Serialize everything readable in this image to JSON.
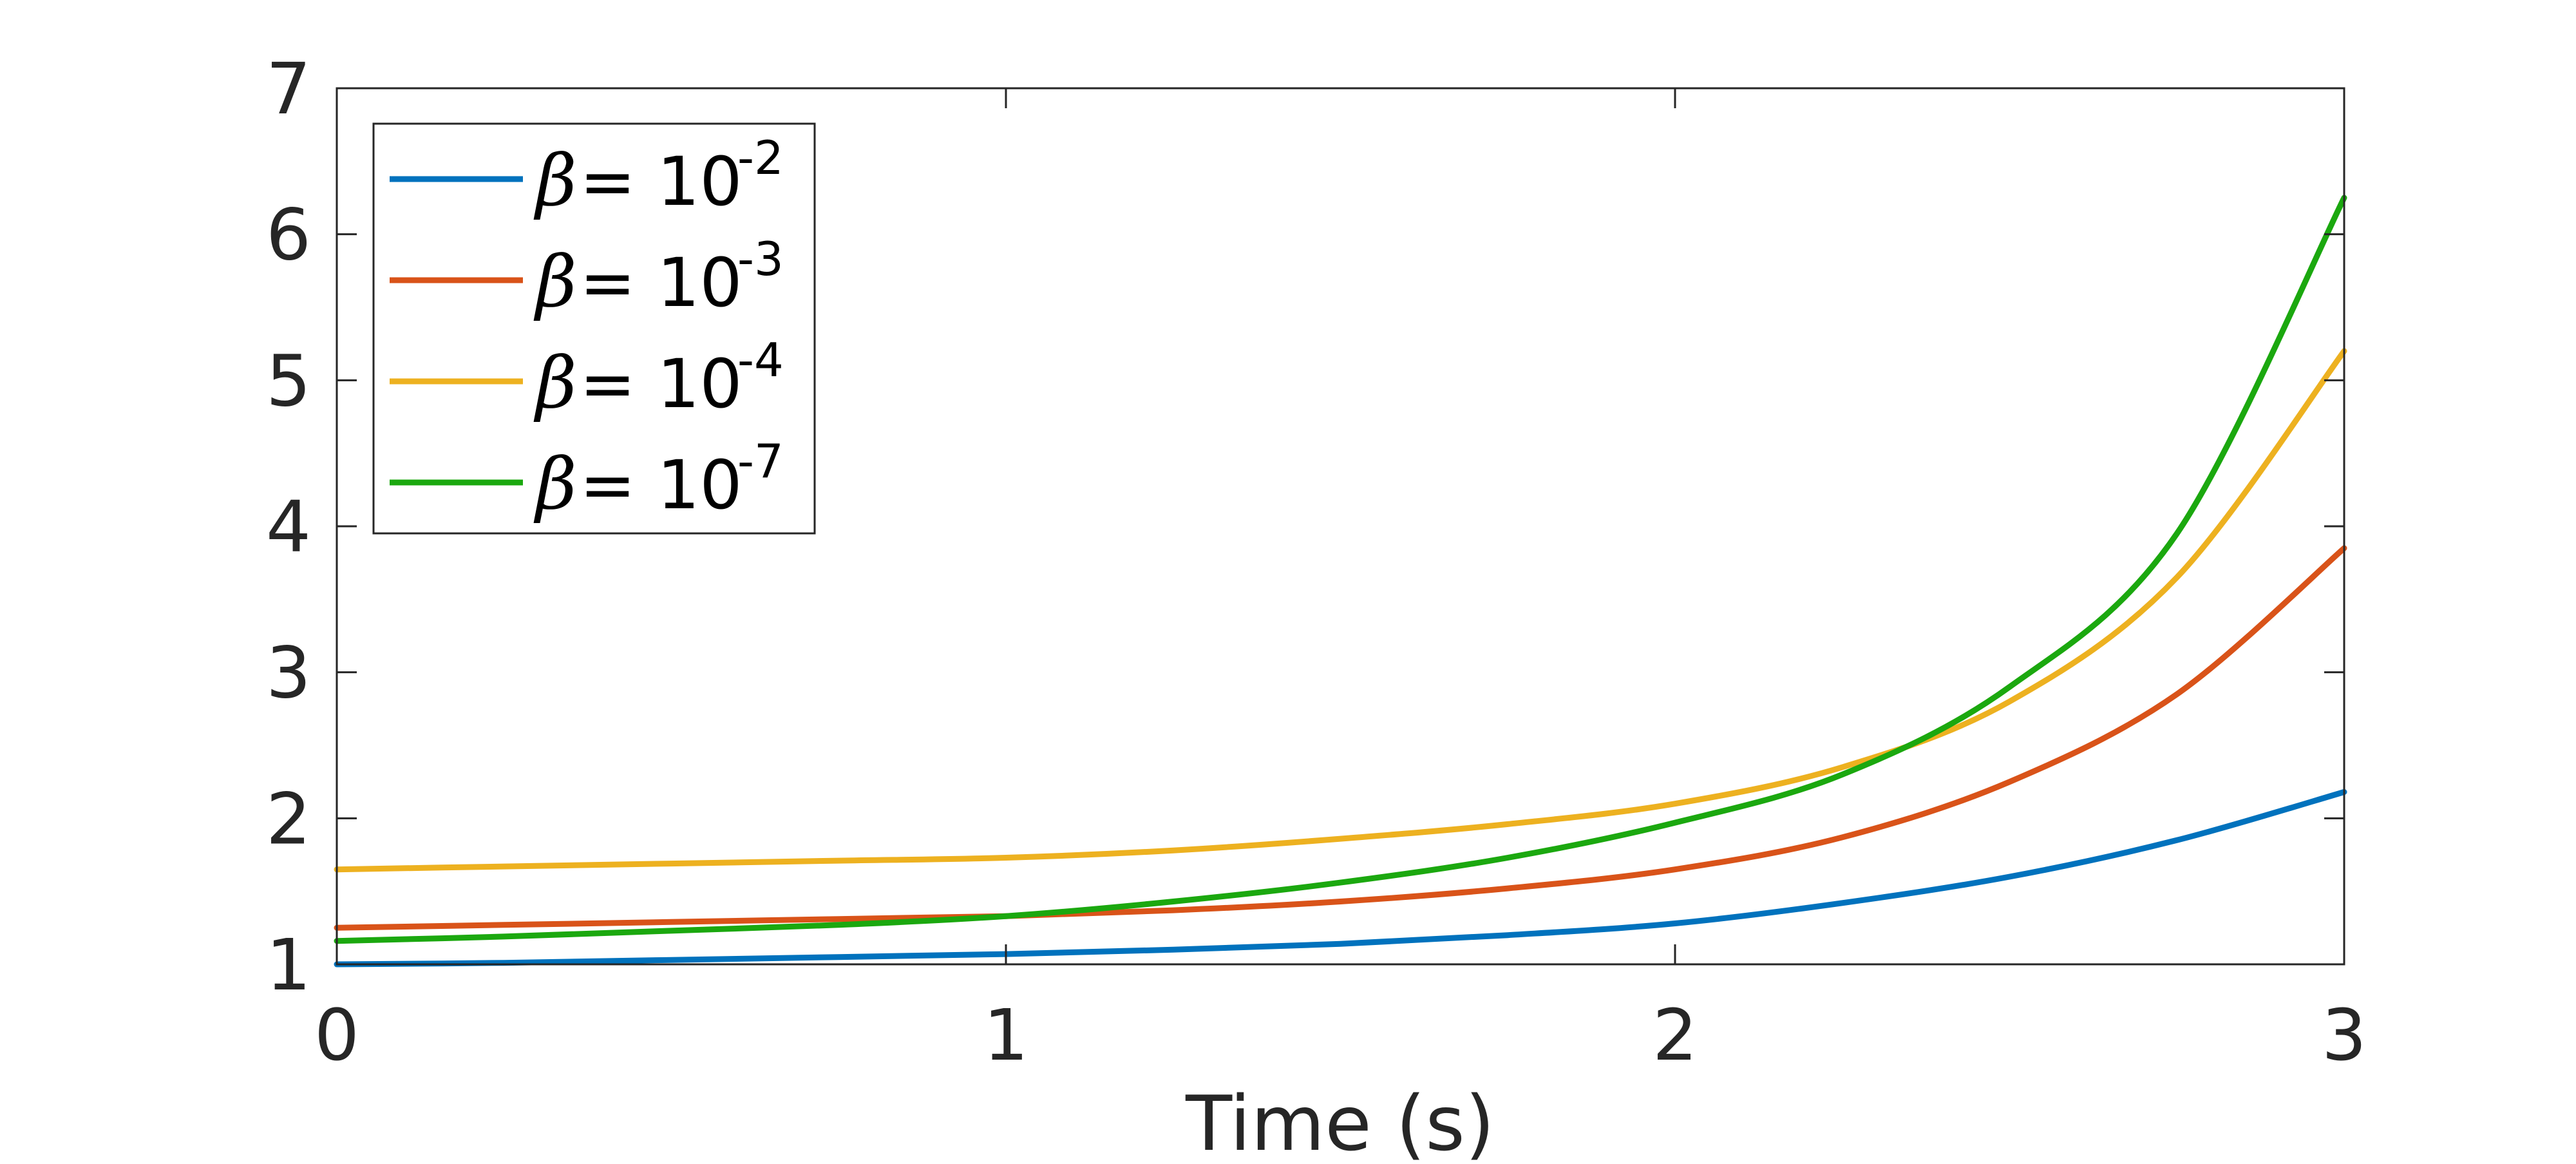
{
  "chart_data": {
    "type": "line",
    "xlabel": "Time (s)",
    "ylabel": "",
    "xlim": [
      0,
      3
    ],
    "ylim": [
      1,
      7
    ],
    "xticks": [
      0,
      1,
      2,
      3
    ],
    "yticks": [
      1,
      2,
      3,
      4,
      5,
      6,
      7
    ],
    "grid": false,
    "legend_position": "top-left",
    "x": [
      0,
      0.25,
      0.5,
      0.75,
      1.0,
      1.25,
      1.5,
      1.75,
      2.0,
      2.25,
      2.5,
      2.75,
      3.0
    ],
    "series": [
      {
        "name": "β = 10-2",
        "legend": {
          "symbol": "β",
          "text": " = 10",
          "exponent": "-2"
        },
        "color": "#0072BD",
        "values": [
          1.0,
          1.01,
          1.03,
          1.05,
          1.07,
          1.1,
          1.14,
          1.2,
          1.28,
          1.42,
          1.6,
          1.85,
          2.18
        ]
      },
      {
        "name": "β = 10-3",
        "legend": {
          "symbol": "β",
          "text": " = 10",
          "exponent": "-3"
        },
        "color": "#D95319",
        "values": [
          1.25,
          1.27,
          1.29,
          1.31,
          1.33,
          1.37,
          1.43,
          1.52,
          1.65,
          1.87,
          2.25,
          2.85,
          3.85
        ]
      },
      {
        "name": "β = 10-4",
        "legend": {
          "symbol": "β",
          "text": " = 10",
          "exponent": "-4"
        },
        "color": "#EDB120",
        "values": [
          1.65,
          1.67,
          1.69,
          1.71,
          1.73,
          1.78,
          1.86,
          1.96,
          2.1,
          2.35,
          2.8,
          3.65,
          5.2
        ]
      },
      {
        "name": "β = 10-7",
        "legend": {
          "symbol": "β",
          "text": " = 10",
          "exponent": "-7"
        },
        "color": "#1BA80F",
        "values": [
          1.16,
          1.19,
          1.23,
          1.27,
          1.33,
          1.43,
          1.56,
          1.73,
          1.97,
          2.3,
          2.9,
          3.95,
          6.25
        ]
      }
    ]
  }
}
